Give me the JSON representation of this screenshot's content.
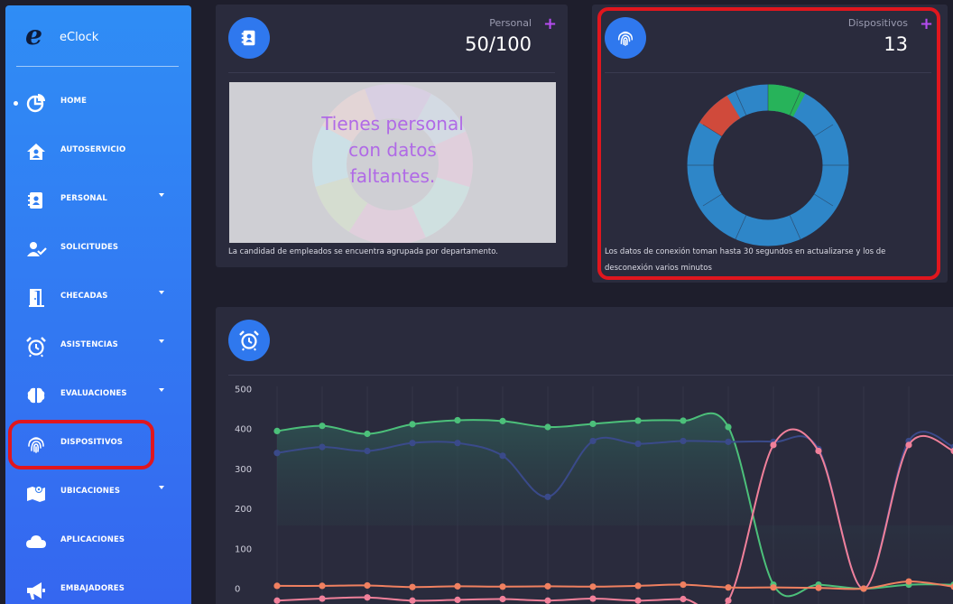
{
  "app": {
    "name": "eClock",
    "logo_letter": "e"
  },
  "sidebar": {
    "items": [
      {
        "label": "HOME",
        "icon": "pie-chart-icon",
        "active": true,
        "has_caret": false
      },
      {
        "label": "AUTOSERVICIO",
        "icon": "home-user-icon",
        "has_caret": false
      },
      {
        "label": "PERSONAL",
        "icon": "address-book-icon",
        "has_caret": true
      },
      {
        "label": "SOLICITUDES",
        "icon": "user-check-icon",
        "has_caret": false
      },
      {
        "label": "CHECADAS",
        "icon": "door-open-icon",
        "has_caret": true
      },
      {
        "label": "ASISTENCIAS",
        "icon": "alarm-clock-icon",
        "has_caret": true
      },
      {
        "label": "EVALUACIONES",
        "icon": "brain-icon",
        "has_caret": true
      },
      {
        "label": "DISPOSITIVOS",
        "icon": "fingerprint-icon",
        "has_caret": false
      },
      {
        "label": "UBICACIONES",
        "icon": "map-icon",
        "has_caret": true
      },
      {
        "label": "APLICACIONES",
        "icon": "cloud-icon",
        "has_caret": false
      },
      {
        "label": "EMBAJADORES",
        "icon": "megaphone-icon",
        "has_caret": false
      }
    ]
  },
  "personal_card": {
    "title": "Personal",
    "value": "50/100",
    "add_label": "+",
    "overlay_text": [
      "Tienes personal",
      "con datos",
      "faltantes."
    ],
    "footer": "La candidad de empleados se encuentra agrupada por departamento."
  },
  "devices_card": {
    "title": "Dispositivos",
    "value": "13",
    "add_label": "+",
    "footer_lines": [
      "Los datos de conexión toman hasta 30 segundos en actualizarse y los de",
      "desconexión varios minutos"
    ],
    "donut_colors": {
      "main": "#2e86c8",
      "green": "#27b35a",
      "red": "#d04a3b"
    }
  },
  "attendance_card": {
    "icon": "alarm-clock-icon"
  },
  "colors": {
    "accent": "#2f78ee",
    "plus": "#b54cf0",
    "highlight": "#e0161e"
  },
  "chart_data": {
    "type": "line",
    "ylim": [
      0,
      500
    ],
    "yticks": [
      "500",
      "400",
      "300",
      "200",
      "100",
      "0"
    ],
    "grid": true,
    "series": [
      {
        "color": "#4cc07a",
        "values": [
          395,
          408,
          388,
          412,
          422,
          420,
          405,
          413,
          421,
          421,
          405,
          10,
          10,
          0,
          10,
          10
        ]
      },
      {
        "color": "#3a4a8a",
        "values": [
          340,
          355,
          345,
          365,
          365,
          333,
          230,
          370,
          363,
          370,
          368,
          368,
          350,
          0,
          370,
          355
        ]
      },
      {
        "color": "#f0809a",
        "values": [
          -30,
          -25,
          -22,
          -30,
          -28,
          -26,
          -30,
          -25,
          -30,
          -26,
          -30,
          360,
          345,
          0,
          360,
          345
        ]
      },
      {
        "color": "#f08060",
        "values": [
          7,
          7,
          8,
          4,
          6,
          5,
          6,
          5,
          7,
          10,
          3,
          3,
          2,
          0,
          18,
          5
        ]
      }
    ]
  }
}
